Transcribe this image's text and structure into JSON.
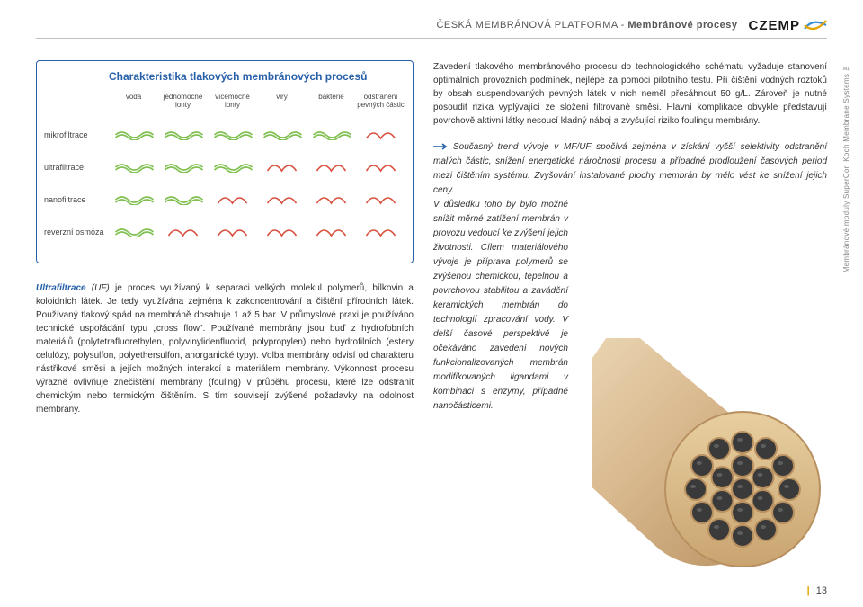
{
  "header": {
    "org": "ČESKÁ MEMBRÁNOVÁ PLATFORMA",
    "section": "Membránové procesy",
    "logo_text": "CZEMP"
  },
  "colors": {
    "frame": "#2760a8",
    "accent": "#e5a500",
    "bar_pass": "#7fbf4f",
    "bar_block": "#d94f3d",
    "swoosh1": "#3a8ed0",
    "swoosh2": "#e5a500",
    "tube_outer": "#d9b98f",
    "tube_rim": "#b89060",
    "tube_hole": "#3a3a3a",
    "tube_hilite": "#f0e0c0"
  },
  "diagram": {
    "title": "Charakteristika tlakových membránových procesů",
    "columns": [
      "voda",
      "jednomocné ionty",
      "vícemocné ionty",
      "viry",
      "bakterie",
      "odstranění pevných částic"
    ],
    "rows": [
      {
        "label": "mikrofiltrace",
        "cells": [
          "pass",
          "pass",
          "pass",
          "pass",
          "pass",
          "block"
        ]
      },
      {
        "label": "ultrafiltrace",
        "cells": [
          "pass",
          "pass",
          "pass",
          "block",
          "block",
          "block"
        ]
      },
      {
        "label": "nanofiltrace",
        "cells": [
          "pass",
          "pass",
          "block",
          "block",
          "block",
          "block"
        ]
      },
      {
        "label": "reverzní osmóza",
        "cells": [
          "pass",
          "block",
          "block",
          "block",
          "block",
          "block"
        ]
      }
    ]
  },
  "left_para": {
    "lead_bold": "Ultrafiltrace",
    "lead_italic": " (UF) ",
    "body": "je proces využívaný k separaci velkých molekul polymerů, bílkovin a koloidních látek. Je tedy využívána zejména k zakoncentrování a čištění přírodních látek. Používaný tlakový spád na membráně dosahuje 1 až 5 bar. V průmyslové praxi je používáno technické uspořádání typu „cross flow\". Používané membrány jsou buď z hydrofobních materiálů (polytetrafluorethylen, polyvinylidenfluorid, polypropylen) nebo hydrofilních (estery celulózy, polysulfon, polyethersulfon, anorganické typy). Volba membrány odvisí od charakteru nástřikové směsi a jejích možných interakcí s materiálem membrány. Výkonnost procesu výrazně ovlivňuje znečištění membrány (fouling) v průběhu procesu, které lze odstranit chemickým nebo termickým čištěním. S tím souvisejí zvýšené požadavky na odolnost membrány."
  },
  "right_para1": "Zavedení tlakového membránového procesu do technologického schématu vyžaduje stanovení optimálních provozních podmínek, nejlépe za pomoci pilotního testu. Při čištění vodných roztoků by obsah suspendovaných pevných látek v nich neměl přesáhnout 50 g/L. Zároveň je nutné posoudit rizika vyplývající ze složení filtrované směsi. Hlavní komplikace obvykle představují povrchově aktivní látky nesoucí kladný náboj a zvyšující riziko foulingu membrány.",
  "trend_block": "Současný trend vývoje v MF/UF spočívá zejména v získání vyšší selektivity odstranění malých částic, snížení energetické náročnosti procesu a případné prodloužení časových period mezi čištěním systému. Zvyšování instalované plochy membrán by mělo vést ke snížení jejich ceny.",
  "trend_tail_narrow": "V důsledku toho by bylo možné snížit měrné zatížení membrán v provozu vedoucí ke zvýšení jejich životnosti. Cílem materiálového vývoje je příprava polymerů se zvýšenou chemickou, tepelnou a povrchovou stabilitou a zavádění keramických membrán do technologií zpracování vody. V delší časové perspektivě je očekáváno zavedení nových funkcionalizovaných membrán modifikovaných ligandami v kombinaci s enzymy, případně nanočásticemi.",
  "side_caption": "Membránové moduly SuperCor, Koch Membrane Systems ™",
  "page_number": "13"
}
